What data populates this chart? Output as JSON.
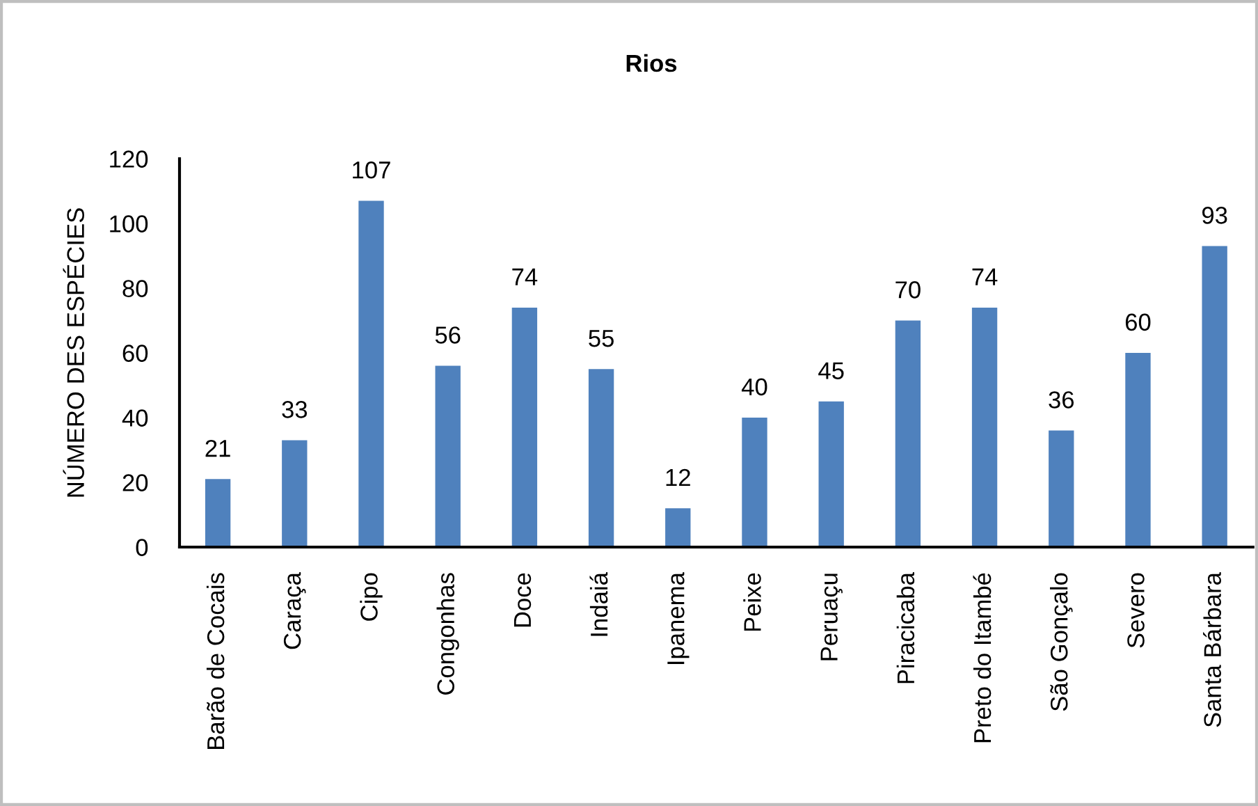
{
  "chart_data": {
    "type": "bar",
    "title": "Rios",
    "ylabel": "NÚMERO DES ESPÉCIES",
    "categories": [
      "Barão de Cocais",
      "Caraça",
      "Cipo",
      "Congonhas",
      "Doce",
      "Indaiá",
      "Ipanema",
      "Peixe",
      "Peruaçu",
      "Piracicaba",
      "Preto do Itambé",
      "São Gonçalo",
      "Severo",
      "Santa Bárbara"
    ],
    "values": [
      21,
      33,
      107,
      56,
      74,
      55,
      12,
      40,
      45,
      70,
      74,
      36,
      60,
      93
    ],
    "color": "#4f81bd",
    "ylim": [
      0,
      120
    ],
    "yticks": [
      0,
      20,
      40,
      60,
      80,
      100,
      120
    ],
    "data_labels": true
  }
}
